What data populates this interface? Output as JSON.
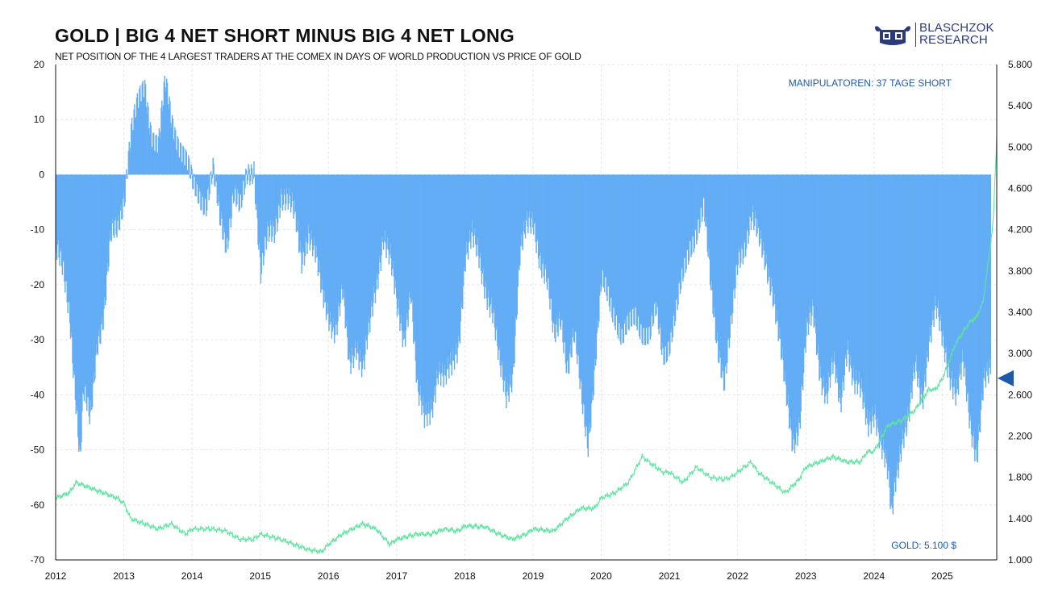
{
  "header": {
    "title": "GOLD | BIG 4 NET SHORT MINUS BIG 4 NET LONG",
    "subtitle": "NET POSITION OF THE 4 LARGEST TRADERS AT THE COMEX IN DAYS OF WORLD PRODUCTION VS PRICE OF GOLD"
  },
  "logo": {
    "line1": "BLASCHZOK",
    "line2": "RESEARCH",
    "color": "#2b3a7a"
  },
  "colors": {
    "bars": "#63adf5",
    "gold_line": "#5fe3a0",
    "annotation": "#1f5aa8",
    "marker": "#1f5aa8",
    "grid": "#e6e6e6"
  },
  "chart_data": {
    "type": "bar",
    "title": "GOLD | BIG 4 NET SHORT MINUS BIG 4 NET LONG",
    "xlabel": "",
    "ylabel": "",
    "x_ticks": [
      "2012",
      "2013",
      "2014",
      "2015",
      "2016",
      "2017",
      "2018",
      "2019",
      "2020",
      "2021",
      "2022",
      "2023",
      "2024",
      "2025"
    ],
    "xlim": [
      2012.0,
      2025.8
    ],
    "ylim_left": [
      -70,
      20
    ],
    "y_ticks_left": [
      "20",
      "10",
      "0",
      "-10",
      "-20",
      "-30",
      "-40",
      "-50",
      "-60",
      "-70"
    ],
    "ylim_right": [
      1000,
      5800
    ],
    "y_ticks_right": [
      "5.800",
      "5.400",
      "5.000",
      "4.600",
      "4.200",
      "3.800",
      "3.400",
      "3.000",
      "2.600",
      "2.200",
      "1.800",
      "1.400",
      "1.000"
    ],
    "grid": true,
    "series": [
      {
        "name": "Big 4 net position (days of world production)",
        "axis": "left",
        "type": "bar",
        "points": [
          [
            2012.0,
            -14
          ],
          [
            2012.1,
            -18
          ],
          [
            2012.2,
            -25
          ],
          [
            2012.3,
            -42
          ],
          [
            2012.35,
            -52
          ],
          [
            2012.4,
            -40
          ],
          [
            2012.5,
            -45
          ],
          [
            2012.6,
            -30
          ],
          [
            2012.7,
            -25
          ],
          [
            2012.8,
            -12
          ],
          [
            2012.9,
            -10
          ],
          [
            2013.0,
            -3
          ],
          [
            2013.05,
            3
          ],
          [
            2013.1,
            8
          ],
          [
            2013.2,
            12
          ],
          [
            2013.3,
            16
          ],
          [
            2013.4,
            8
          ],
          [
            2013.5,
            5
          ],
          [
            2013.6,
            16
          ],
          [
            2013.7,
            10
          ],
          [
            2013.8,
            6
          ],
          [
            2013.9,
            2
          ],
          [
            2014.0,
            -2
          ],
          [
            2014.1,
            -3
          ],
          [
            2014.2,
            -5
          ],
          [
            2014.3,
            0
          ],
          [
            2014.4,
            -8
          ],
          [
            2014.5,
            -12
          ],
          [
            2014.6,
            -3
          ],
          [
            2014.7,
            -7
          ],
          [
            2014.8,
            0
          ],
          [
            2014.9,
            2
          ],
          [
            2015.0,
            -18
          ],
          [
            2015.1,
            -12
          ],
          [
            2015.2,
            -10
          ],
          [
            2015.3,
            -3
          ],
          [
            2015.4,
            -5
          ],
          [
            2015.5,
            -8
          ],
          [
            2015.6,
            -15
          ],
          [
            2015.7,
            -10
          ],
          [
            2015.8,
            -15
          ],
          [
            2015.9,
            -22
          ],
          [
            2016.0,
            -25
          ],
          [
            2016.1,
            -28
          ],
          [
            2016.2,
            -22
          ],
          [
            2016.3,
            -35
          ],
          [
            2016.4,
            -30
          ],
          [
            2016.5,
            -35
          ],
          [
            2016.6,
            -28
          ],
          [
            2016.7,
            -20
          ],
          [
            2016.8,
            -10
          ],
          [
            2016.9,
            -15
          ],
          [
            2017.0,
            -25
          ],
          [
            2017.1,
            -30
          ],
          [
            2017.2,
            -20
          ],
          [
            2017.3,
            -40
          ],
          [
            2017.4,
            -45
          ],
          [
            2017.5,
            -42
          ],
          [
            2017.6,
            -35
          ],
          [
            2017.7,
            -38
          ],
          [
            2017.8,
            -35
          ],
          [
            2017.9,
            -30
          ],
          [
            2018.0,
            -15
          ],
          [
            2018.1,
            -12
          ],
          [
            2018.2,
            -15
          ],
          [
            2018.3,
            -20
          ],
          [
            2018.4,
            -25
          ],
          [
            2018.5,
            -35
          ],
          [
            2018.6,
            -40
          ],
          [
            2018.7,
            -35
          ],
          [
            2018.8,
            -15
          ],
          [
            2018.9,
            -10
          ],
          [
            2019.0,
            -8
          ],
          [
            2019.1,
            -15
          ],
          [
            2019.2,
            -20
          ],
          [
            2019.3,
            -30
          ],
          [
            2019.4,
            -25
          ],
          [
            2019.5,
            -35
          ],
          [
            2019.6,
            -30
          ],
          [
            2019.7,
            -40
          ],
          [
            2019.8,
            -48
          ],
          [
            2019.9,
            -35
          ],
          [
            2020.0,
            -20
          ],
          [
            2020.1,
            -22
          ],
          [
            2020.2,
            -25
          ],
          [
            2020.3,
            -30
          ],
          [
            2020.4,
            -28
          ],
          [
            2020.5,
            -25
          ],
          [
            2020.6,
            -28
          ],
          [
            2020.7,
            -30
          ],
          [
            2020.8,
            -25
          ],
          [
            2020.9,
            -32
          ],
          [
            2021.0,
            -30
          ],
          [
            2021.1,
            -25
          ],
          [
            2021.2,
            -18
          ],
          [
            2021.3,
            -12
          ],
          [
            2021.4,
            -10
          ],
          [
            2021.5,
            -7
          ],
          [
            2021.6,
            -20
          ],
          [
            2021.7,
            -30
          ],
          [
            2021.8,
            -38
          ],
          [
            2021.9,
            -28
          ],
          [
            2022.0,
            -15
          ],
          [
            2022.1,
            -12
          ],
          [
            2022.2,
            -8
          ],
          [
            2022.3,
            -12
          ],
          [
            2022.4,
            -15
          ],
          [
            2022.5,
            -20
          ],
          [
            2022.6,
            -30
          ],
          [
            2022.7,
            -40
          ],
          [
            2022.8,
            -48
          ],
          [
            2022.9,
            -45
          ],
          [
            2023.0,
            -30
          ],
          [
            2023.1,
            -25
          ],
          [
            2023.2,
            -35
          ],
          [
            2023.3,
            -40
          ],
          [
            2023.4,
            -35
          ],
          [
            2023.5,
            -42
          ],
          [
            2023.6,
            -30
          ],
          [
            2023.7,
            -38
          ],
          [
            2023.8,
            -40
          ],
          [
            2023.9,
            -45
          ],
          [
            2024.0,
            -42
          ],
          [
            2024.1,
            -50
          ],
          [
            2024.2,
            -55
          ],
          [
            2024.25,
            -62
          ],
          [
            2024.3,
            -55
          ],
          [
            2024.4,
            -48
          ],
          [
            2024.5,
            -45
          ],
          [
            2024.6,
            -35
          ],
          [
            2024.7,
            -40
          ],
          [
            2024.8,
            -30
          ],
          [
            2024.9,
            -25
          ],
          [
            2025.0,
            -30
          ],
          [
            2025.1,
            -35
          ],
          [
            2025.2,
            -40
          ],
          [
            2025.3,
            -35
          ],
          [
            2025.4,
            -45
          ],
          [
            2025.5,
            -50
          ],
          [
            2025.6,
            -38
          ],
          [
            2025.7,
            -37
          ]
        ]
      },
      {
        "name": "Gold price",
        "axis": "right",
        "type": "line",
        "points": [
          [
            2012.0,
            1600
          ],
          [
            2012.2,
            1650
          ],
          [
            2012.3,
            1750
          ],
          [
            2012.5,
            1700
          ],
          [
            2012.7,
            1650
          ],
          [
            2012.9,
            1600
          ],
          [
            2013.0,
            1550
          ],
          [
            2013.1,
            1400
          ],
          [
            2013.3,
            1350
          ],
          [
            2013.5,
            1300
          ],
          [
            2013.7,
            1350
          ],
          [
            2013.9,
            1250
          ],
          [
            2014.0,
            1300
          ],
          [
            2014.3,
            1300
          ],
          [
            2014.5,
            1280
          ],
          [
            2014.7,
            1200
          ],
          [
            2014.9,
            1200
          ],
          [
            2015.0,
            1250
          ],
          [
            2015.3,
            1200
          ],
          [
            2015.5,
            1150
          ],
          [
            2015.7,
            1100
          ],
          [
            2015.9,
            1080
          ],
          [
            2016.0,
            1150
          ],
          [
            2016.2,
            1250
          ],
          [
            2016.5,
            1350
          ],
          [
            2016.7,
            1300
          ],
          [
            2016.9,
            1150
          ],
          [
            2017.0,
            1200
          ],
          [
            2017.3,
            1250
          ],
          [
            2017.5,
            1250
          ],
          [
            2017.7,
            1300
          ],
          [
            2017.9,
            1280
          ],
          [
            2018.0,
            1330
          ],
          [
            2018.3,
            1320
          ],
          [
            2018.5,
            1250
          ],
          [
            2018.7,
            1200
          ],
          [
            2018.9,
            1250
          ],
          [
            2019.0,
            1300
          ],
          [
            2019.3,
            1280
          ],
          [
            2019.5,
            1400
          ],
          [
            2019.7,
            1500
          ],
          [
            2019.9,
            1500
          ],
          [
            2020.0,
            1600
          ],
          [
            2020.2,
            1650
          ],
          [
            2020.4,
            1750
          ],
          [
            2020.6,
            2000
          ],
          [
            2020.8,
            1900
          ],
          [
            2020.9,
            1850
          ],
          [
            2021.0,
            1850
          ],
          [
            2021.2,
            1750
          ],
          [
            2021.4,
            1900
          ],
          [
            2021.6,
            1800
          ],
          [
            2021.8,
            1780
          ],
          [
            2021.9,
            1800
          ],
          [
            2022.0,
            1850
          ],
          [
            2022.2,
            1950
          ],
          [
            2022.3,
            1850
          ],
          [
            2022.5,
            1750
          ],
          [
            2022.7,
            1650
          ],
          [
            2022.9,
            1780
          ],
          [
            2023.0,
            1900
          ],
          [
            2023.2,
            1950
          ],
          [
            2023.4,
            2000
          ],
          [
            2023.6,
            1950
          ],
          [
            2023.8,
            1950
          ],
          [
            2023.9,
            2050
          ],
          [
            2024.0,
            2050
          ],
          [
            2024.2,
            2300
          ],
          [
            2024.4,
            2350
          ],
          [
            2024.6,
            2450
          ],
          [
            2024.8,
            2650
          ],
          [
            2024.9,
            2650
          ],
          [
            2025.0,
            2750
          ],
          [
            2025.2,
            3100
          ],
          [
            2025.4,
            3300
          ],
          [
            2025.5,
            3350
          ],
          [
            2025.6,
            3500
          ],
          [
            2025.7,
            4000
          ],
          [
            2025.75,
            4300
          ],
          [
            2025.8,
            5100
          ]
        ]
      }
    ],
    "annotations": {
      "top_right": "MANIPULATOREN: 37 TAGE SHORT",
      "bottom_right": "GOLD: 5.100 $",
      "marker_value": -37
    }
  }
}
